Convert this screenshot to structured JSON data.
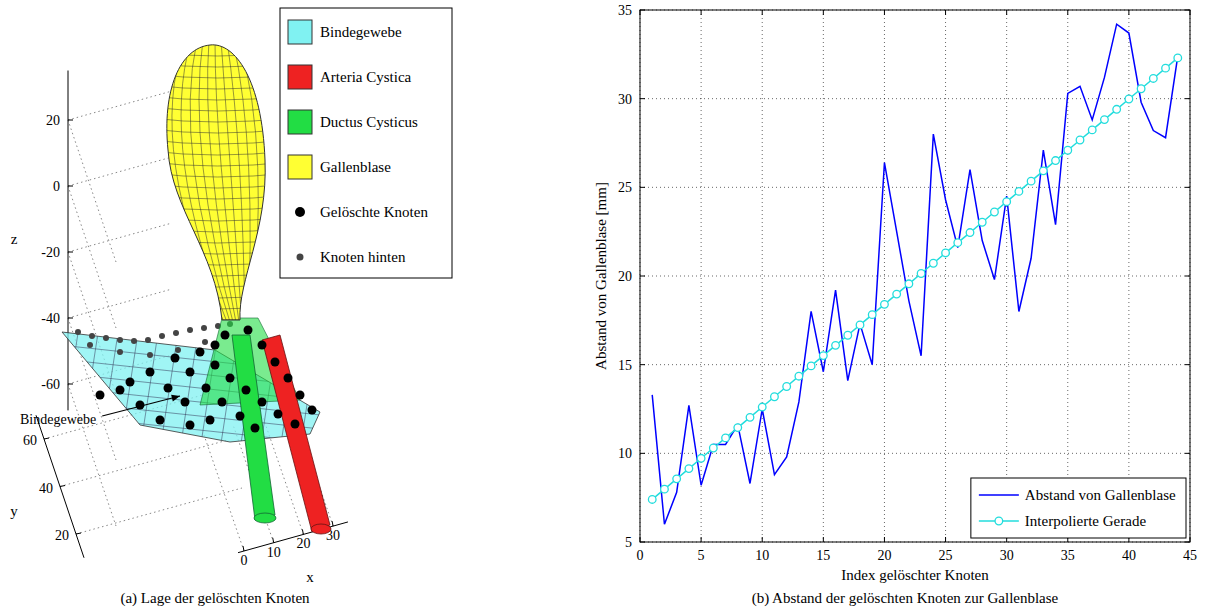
{
  "chart_data": [
    {
      "type": "3d-surface",
      "caption": "(a) Lage der gelöschten Knoten",
      "xlabel": "x",
      "ylabel": "y",
      "zlabel": "z",
      "xlim": [
        -2,
        35
      ],
      "ylim": [
        10,
        70
      ],
      "zlim": [
        -68,
        35
      ],
      "xticks": [
        0,
        10,
        20,
        30
      ],
      "yticks": [
        20,
        40,
        60
      ],
      "zticks": [
        -60,
        -40,
        -20,
        0,
        20
      ],
      "grid": true,
      "legend": "top-right",
      "annotations": [
        "Bindegewebe"
      ],
      "series": [
        {
          "name": "Bindegewebe",
          "color": "#80f2f2"
        },
        {
          "name": "Arteria Cystica",
          "color": "#ee2222"
        },
        {
          "name": "Ductus Cysticus",
          "color": "#22dd44"
        },
        {
          "name": "Gallenblase",
          "color": "#ffff33"
        },
        {
          "name": "Gelöschte Knoten",
          "color": "#000000",
          "marker": "circle"
        },
        {
          "name": "Knoten hinten",
          "color": "#444444",
          "marker": "point"
        }
      ]
    },
    {
      "type": "line",
      "caption": "(b) Abstand der gelöschten Knoten zur Gallenblase",
      "xlabel": "Index gelöschter Knoten",
      "ylabel": "Abstand von Gallenblase [mm]",
      "x": [
        1,
        2,
        3,
        4,
        5,
        6,
        7,
        8,
        9,
        10,
        11,
        12,
        13,
        14,
        15,
        16,
        17,
        18,
        19,
        20,
        21,
        22,
        23,
        24,
        25,
        26,
        27,
        28,
        29,
        30,
        31,
        32,
        33,
        34,
        35,
        36,
        37,
        38,
        39,
        40,
        41,
        42,
        43,
        44
      ],
      "xlim": [
        0,
        45
      ],
      "xticks": [
        0,
        5,
        10,
        15,
        20,
        25,
        30,
        35,
        40,
        45
      ],
      "ylim": [
        5,
        35
      ],
      "yticks": [
        5,
        10,
        15,
        20,
        25,
        30,
        35
      ],
      "grid": true,
      "legend": "bottom-right",
      "series": [
        {
          "name": "Abstand von Gallenblase",
          "color": "#0000ff",
          "values": [
            13.3,
            6.0,
            7.8,
            12.7,
            8.2,
            10.5,
            10.5,
            11.6,
            8.3,
            12.5,
            8.8,
            9.8,
            12.9,
            18.0,
            14.6,
            19.2,
            14.1,
            17.3,
            15.0,
            26.4,
            22.5,
            18.6,
            15.5,
            28.0,
            24.3,
            21.6,
            26.0,
            22.0,
            19.8,
            24.5,
            18.0,
            21.0,
            27.1,
            22.9,
            30.3,
            30.7,
            28.8,
            31.2,
            34.2,
            33.7,
            29.8,
            28.2,
            27.8,
            32.4
          ]
        },
        {
          "name": "Interpolierte Gerade",
          "color": "#22dddd",
          "marker": "circle",
          "values": [
            7.4,
            7.98,
            8.56,
            9.14,
            9.72,
            10.3,
            10.87,
            11.45,
            12.03,
            12.61,
            13.19,
            13.77,
            14.35,
            14.93,
            15.51,
            16.09,
            16.66,
            17.24,
            17.82,
            18.4,
            18.98,
            19.56,
            20.14,
            20.72,
            21.3,
            21.88,
            22.45,
            23.03,
            23.61,
            24.19,
            24.77,
            25.35,
            25.93,
            26.51,
            27.09,
            27.67,
            28.24,
            28.82,
            29.4,
            29.98,
            30.56,
            31.14,
            31.72,
            32.3
          ]
        }
      ]
    }
  ]
}
